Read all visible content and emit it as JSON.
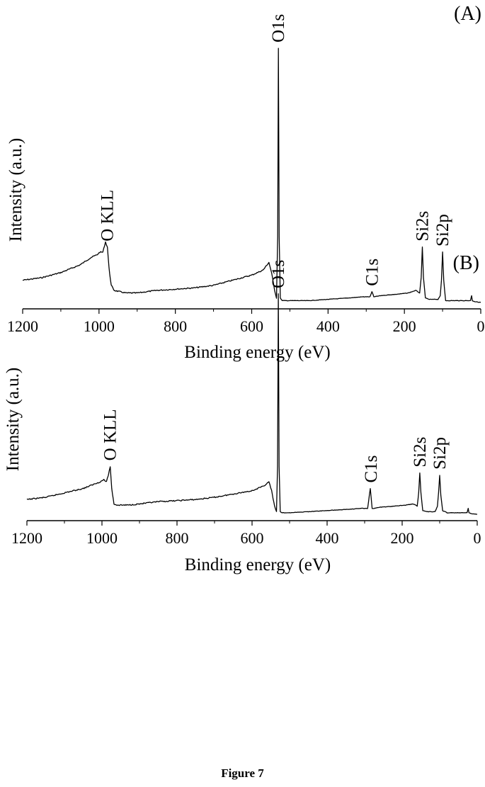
{
  "figure_caption": "Figure 7",
  "chart_data": [
    {
      "type": "line",
      "panel_label": "(A)",
      "xlabel": "Binding energy (eV)",
      "ylabel": "Intensity (a.u.)",
      "xlim": [
        1200,
        0
      ],
      "x_reversed": true,
      "ylim": [
        0,
        100
      ],
      "y_ticks_shown": false,
      "grid": false,
      "x_ticks": [
        1200,
        1000,
        800,
        600,
        400,
        200,
        0
      ],
      "series": [
        {
          "name": "",
          "x": [
            1200,
            1150,
            1100,
            1050,
            1020,
            1005,
            998,
            990,
            983,
            978,
            974,
            968,
            960,
            945,
            930,
            900,
            850,
            800,
            750,
            700,
            650,
            600,
            570,
            555,
            548,
            540,
            535,
            532,
            530,
            528,
            525,
            520,
            500,
            450,
            400,
            350,
            310,
            290,
            285,
            280,
            260,
            220,
            190,
            170,
            160,
            156,
            153,
            150,
            145,
            135,
            125,
            112,
            106,
            103,
            100,
            97,
            92,
            80,
            60,
            40,
            27,
            24,
            22,
            19,
            15,
            5,
            0
          ],
          "y": [
            9,
            10,
            12,
            15,
            18,
            19,
            20,
            20,
            24,
            22,
            14,
            7,
            5,
            4.5,
            4,
            4,
            5,
            5.5,
            6,
            7,
            9,
            11,
            13,
            16,
            12,
            5,
            2,
            26,
            100,
            26,
            2,
            1,
            1,
            1,
            1.5,
            2,
            2.5,
            2.5,
            4.5,
            2.5,
            3,
            3.5,
            4,
            5,
            4,
            10,
            22,
            10,
            2,
            1.5,
            1.5,
            1.5,
            3,
            9,
            20,
            9,
            1,
            1,
            1,
            1,
            1,
            3,
            1,
            0.8,
            0.6,
            0.4,
            0.3
          ]
        }
      ],
      "annotations": [
        {
          "text": "O KLL",
          "x": 978
        },
        {
          "text": "O1s",
          "x": 530
        },
        {
          "text": "C1s",
          "x": 285
        },
        {
          "text": "Si2s",
          "x": 153
        },
        {
          "text": "Si2p",
          "x": 100
        }
      ]
    },
    {
      "type": "line",
      "panel_label": "(B)",
      "xlabel": "Binding energy (eV)",
      "ylabel": "Intensity (a.u.)",
      "xlim": [
        1200,
        0
      ],
      "x_reversed": true,
      "ylim": [
        0,
        100
      ],
      "y_ticks_shown": false,
      "grid": false,
      "x_ticks": [
        1200,
        1000,
        800,
        600,
        400,
        200,
        0
      ],
      "series": [
        {
          "name": "",
          "x": [
            1200,
            1150,
            1100,
            1050,
            1020,
            1005,
            995,
            988,
            983,
            978,
            974,
            968,
            960,
            945,
            930,
            900,
            850,
            800,
            750,
            700,
            650,
            600,
            570,
            555,
            548,
            540,
            535,
            532,
            530,
            528,
            525,
            520,
            500,
            450,
            400,
            350,
            310,
            292,
            285,
            280,
            275,
            260,
            220,
            190,
            170,
            160,
            156,
            153,
            150,
            145,
            135,
            125,
            112,
            106,
            103,
            100,
            97,
            92,
            80,
            60,
            40,
            27,
            24,
            22,
            19,
            15,
            5,
            0
          ],
          "y": [
            7,
            8,
            10,
            12,
            14,
            15,
            16,
            15,
            18,
            22,
            12,
            5,
            4.5,
            4.5,
            4.5,
            5,
            6,
            6.5,
            7,
            8,
            9.5,
            11,
            13,
            15,
            11,
            4,
            1.5,
            22,
            100,
            22,
            1.5,
            1,
            1,
            1.5,
            2,
            2.5,
            3,
            3,
            12,
            3,
            3,
            3.5,
            4,
            4.5,
            5,
            4,
            10,
            19,
            10,
            2,
            1.5,
            1.5,
            1.5,
            4,
            10,
            18,
            9,
            2,
            1,
            1,
            1,
            1,
            3,
            1,
            0.8,
            0.6,
            0.4,
            0.3
          ]
        }
      ],
      "annotations": [
        {
          "text": "O KLL",
          "x": 978
        },
        {
          "text": "O1s",
          "x": 530
        },
        {
          "text": "C1s",
          "x": 283
        },
        {
          "text": "Si2s",
          "x": 153
        },
        {
          "text": "Si2p",
          "x": 100
        }
      ]
    }
  ]
}
